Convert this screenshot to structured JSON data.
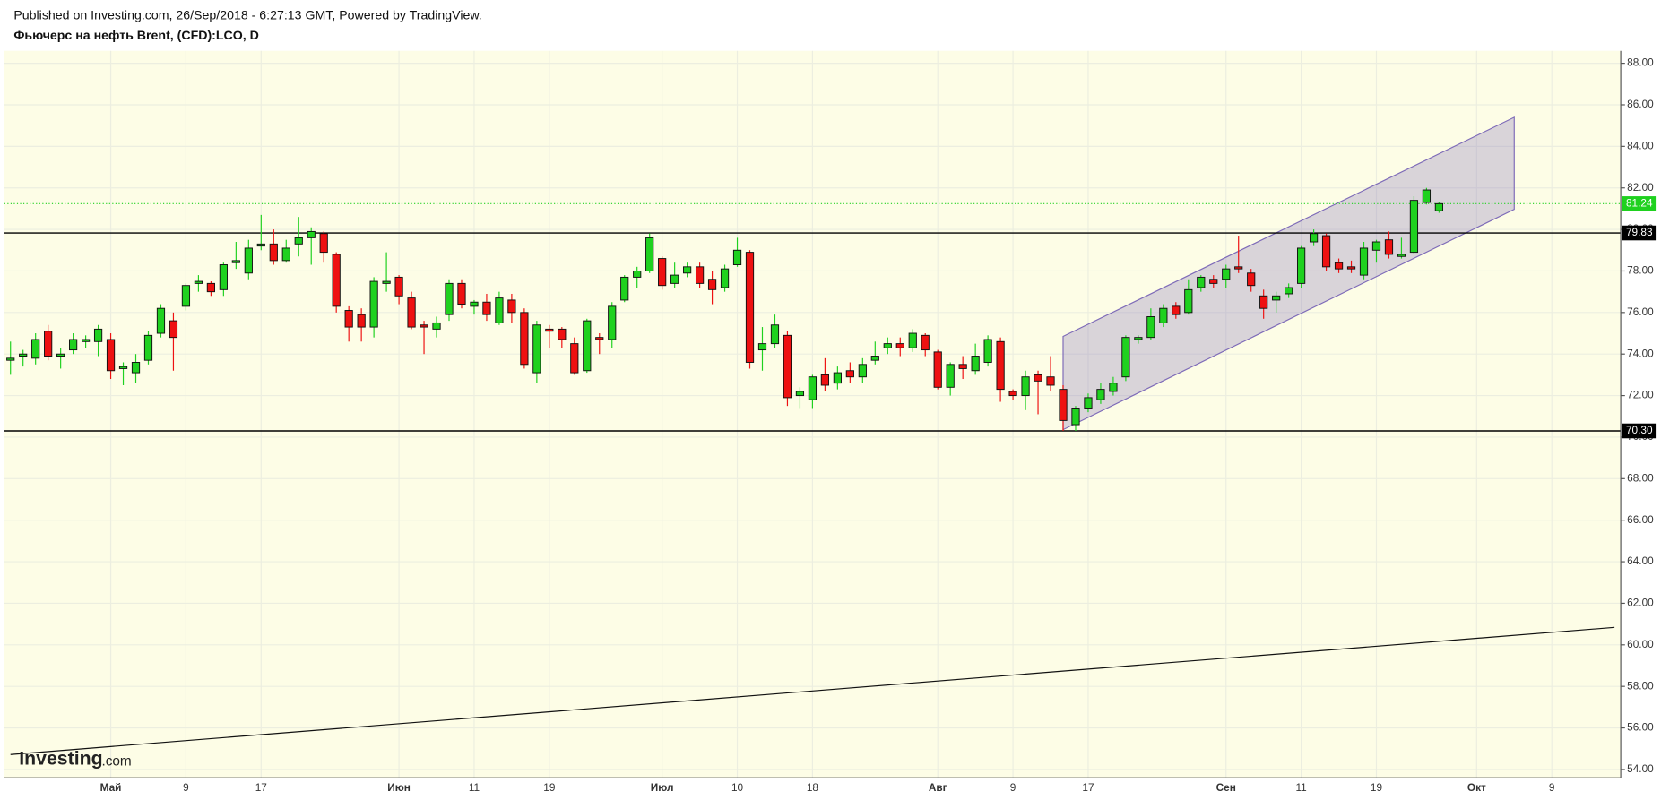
{
  "header": {
    "published": "Published on Investing.com, 26/Sep/2018 - 6:27:13 GMT, Powered by TradingView.",
    "instrument": "Фьючерс на нефть Brent, (CFD):LCO, D"
  },
  "watermark": {
    "brand": "Investing",
    "suffix": ".com"
  },
  "chart_data": {
    "type": "candlestick",
    "categories": [
      null,
      null,
      null,
      null,
      null,
      null,
      null,
      null,
      "Май",
      null,
      null,
      null,
      null,
      null,
      "9",
      null,
      null,
      null,
      null,
      null,
      "17",
      null,
      null,
      null,
      null,
      null,
      null,
      null,
      null,
      null,
      null,
      "Июн",
      null,
      null,
      null,
      null,
      null,
      "11",
      null,
      null,
      null,
      null,
      null,
      "19",
      null,
      null,
      null,
      null,
      null,
      null,
      null,
      null,
      "Июл",
      null,
      null,
      null,
      null,
      null,
      "10",
      null,
      null,
      null,
      null,
      null,
      "18",
      null,
      null,
      null,
      null,
      null,
      null,
      null,
      null,
      null,
      "Авг",
      null,
      null,
      null,
      null,
      null,
      "9",
      null,
      null,
      null,
      null,
      null,
      "17",
      null,
      null,
      null,
      null,
      null,
      null,
      null,
      null,
      null,
      null,
      "Сен",
      null,
      null,
      null,
      null,
      null,
      "11",
      null,
      null,
      null,
      null,
      null,
      "19",
      null,
      null,
      null,
      null,
      null,
      null,
      null,
      "Окт",
      null,
      null,
      null,
      null,
      null,
      "9",
      null,
      null,
      null,
      null,
      null
    ],
    "open": [
      73.7,
      73.9,
      73.8,
      75.1,
      73.9,
      74.2,
      74.6,
      74.6,
      74.7,
      73.3,
      73.1,
      73.7,
      75.0,
      75.6,
      76.3,
      77.4,
      77.4,
      77.1,
      78.4,
      77.9,
      79.2,
      79.3,
      78.5,
      79.3,
      79.6,
      79.8,
      78.8,
      76.1,
      75.9,
      75.3,
      77.4,
      77.7,
      76.7,
      75.4,
      75.2,
      75.9,
      77.4,
      76.3,
      76.5,
      75.5,
      76.6,
      76.0,
      73.1,
      75.2,
      75.2,
      74.5,
      73.2,
      74.8,
      74.7,
      76.6,
      77.7,
      78.0,
      78.6,
      77.4,
      77.9,
      78.2,
      77.6,
      77.2,
      78.3,
      78.9,
      74.2,
      74.5,
      74.9,
      72.0,
      71.8,
      73.0,
      72.6,
      73.2,
      72.9,
      73.7,
      74.3,
      74.5,
      74.3,
      74.9,
      74.1,
      72.4,
      73.5,
      73.2,
      73.6,
      74.6,
      72.2,
      72.0,
      73.0,
      72.9,
      72.3,
      70.6,
      71.4,
      71.8,
      72.2,
      72.9,
      74.7,
      74.8,
      75.5,
      76.3,
      76.0,
      77.2,
      77.6,
      77.6,
      78.2,
      77.9,
      76.8,
      76.6,
      76.9,
      77.4,
      79.4,
      79.7,
      78.4,
      78.2,
      77.8,
      79.0,
      79.5,
      78.7,
      78.9,
      81.3,
      80.9,
      null,
      null,
      null,
      null,
      null,
      null,
      null,
      null,
      null,
      null,
      null,
      null,
      null,
      null
    ],
    "high": [
      74.6,
      74.2,
      75.0,
      75.4,
      74.3,
      75.0,
      74.9,
      75.4,
      75.0,
      73.6,
      74.0,
      75.1,
      76.4,
      76.0,
      77.4,
      77.8,
      77.5,
      78.4,
      79.4,
      79.5,
      80.7,
      80.0,
      79.5,
      80.6,
      80.1,
      79.9,
      78.9,
      76.3,
      76.2,
      77.7,
      78.9,
      77.8,
      77.0,
      75.6,
      75.8,
      77.6,
      77.6,
      76.6,
      76.9,
      77.0,
      76.9,
      76.2,
      75.6,
      75.4,
      75.3,
      74.8,
      75.7,
      75.0,
      76.5,
      77.8,
      78.2,
      79.8,
      78.7,
      78.4,
      78.4,
      78.4,
      78.0,
      78.3,
      79.6,
      79.0,
      75.3,
      75.9,
      75.1,
      72.4,
      73.0,
      73.8,
      73.4,
      73.6,
      73.8,
      74.6,
      74.8,
      74.8,
      75.2,
      75.0,
      74.2,
      73.6,
      73.9,
      74.5,
      74.9,
      74.8,
      72.3,
      73.2,
      73.2,
      73.9,
      72.5,
      71.5,
      72.1,
      72.6,
      72.9,
      74.9,
      74.9,
      76.2,
      76.4,
      76.5,
      77.6,
      77.8,
      77.8,
      78.3,
      79.7,
      78.1,
      77.1,
      77.0,
      77.4,
      79.2,
      80.0,
      79.8,
      78.6,
      78.5,
      79.4,
      79.5,
      79.9,
      79.6,
      81.6,
      82.0,
      81.3,
      null,
      null,
      null,
      null,
      null,
      null,
      null,
      null,
      null,
      null,
      null,
      null,
      null,
      null
    ],
    "low": [
      73.0,
      73.4,
      73.5,
      73.7,
      73.3,
      74.0,
      74.3,
      73.9,
      72.8,
      72.5,
      72.6,
      73.5,
      74.8,
      73.2,
      76.1,
      77.0,
      76.8,
      76.8,
      78.1,
      77.6,
      79.0,
      78.3,
      78.4,
      78.7,
      78.3,
      78.4,
      76.0,
      74.6,
      74.6,
      74.8,
      77.0,
      76.4,
      75.2,
      74.0,
      74.8,
      75.6,
      76.2,
      75.9,
      75.6,
      75.4,
      75.5,
      73.3,
      72.6,
      74.3,
      74.3,
      73.0,
      73.1,
      74.0,
      74.3,
      76.5,
      77.2,
      77.9,
      77.1,
      77.2,
      77.7,
      77.2,
      76.4,
      77.0,
      78.2,
      73.3,
      73.2,
      74.3,
      71.5,
      71.4,
      71.4,
      72.2,
      72.3,
      72.6,
      72.6,
      73.5,
      74.0,
      73.9,
      74.1,
      73.9,
      72.3,
      72.0,
      72.8,
      73.0,
      73.4,
      71.7,
      71.8,
      71.3,
      71.1,
      72.2,
      70.3,
      70.3,
      71.2,
      71.6,
      72.0,
      72.7,
      74.5,
      74.7,
      75.3,
      75.7,
      75.9,
      77.0,
      77.2,
      77.2,
      77.9,
      77.0,
      75.7,
      76.0,
      76.7,
      77.2,
      79.2,
      78.0,
      77.9,
      77.9,
      77.6,
      78.4,
      78.6,
      78.6,
      78.8,
      81.2,
      80.8,
      null,
      null,
      null,
      null,
      null,
      null,
      null,
      null,
      null,
      null,
      null,
      null,
      null,
      null
    ],
    "close": [
      73.8,
      74.0,
      74.7,
      73.9,
      74.0,
      74.7,
      74.7,
      75.2,
      73.2,
      73.4,
      73.6,
      74.9,
      76.2,
      74.8,
      77.3,
      77.5,
      77.0,
      78.3,
      78.5,
      79.1,
      79.3,
      78.5,
      79.1,
      79.6,
      79.9,
      78.9,
      76.3,
      75.3,
      75.3,
      77.5,
      77.5,
      76.8,
      75.3,
      75.3,
      75.5,
      77.4,
      76.4,
      76.5,
      75.9,
      76.7,
      76.0,
      73.5,
      75.4,
      75.1,
      74.7,
      73.1,
      75.6,
      74.7,
      76.3,
      77.7,
      78.0,
      79.6,
      77.3,
      77.8,
      78.2,
      77.4,
      77.1,
      78.1,
      79.0,
      73.6,
      74.5,
      75.4,
      71.9,
      72.2,
      72.9,
      72.5,
      73.1,
      72.9,
      73.5,
      73.9,
      74.5,
      74.3,
      75.0,
      74.2,
      72.4,
      73.5,
      73.3,
      73.9,
      74.7,
      72.3,
      72.0,
      72.9,
      72.7,
      72.5,
      70.8,
      71.4,
      71.9,
      72.3,
      72.6,
      74.8,
      74.8,
      75.8,
      76.2,
      75.9,
      77.1,
      77.7,
      77.4,
      78.1,
      78.1,
      77.3,
      76.2,
      76.8,
      77.2,
      79.1,
      79.8,
      78.2,
      78.1,
      78.1,
      79.1,
      79.4,
      78.8,
      78.8,
      81.4,
      81.9,
      81.24,
      null,
      null,
      null,
      null,
      null,
      null,
      null,
      null,
      null,
      null,
      null,
      null,
      null,
      null
    ],
    "up_color": "#1fd11f",
    "down_color": "#ee1111",
    "ylim": [
      53.6,
      88.6
    ],
    "yticks": [
      {
        "value": 54,
        "label": "54.00"
      },
      {
        "value": 56,
        "label": "56.00"
      },
      {
        "value": 58,
        "label": "58.00"
      },
      {
        "value": 60,
        "label": "60.00"
      },
      {
        "value": 62,
        "label": "62.00"
      },
      {
        "value": 64,
        "label": "64.00"
      },
      {
        "value": 66,
        "label": "66.00"
      },
      {
        "value": 68,
        "label": "68.00"
      },
      {
        "value": 70,
        "label": "70.00"
      },
      {
        "value": 72,
        "label": "72.00"
      },
      {
        "value": 74,
        "label": "74.00"
      },
      {
        "value": 76,
        "label": "76.00"
      },
      {
        "value": 78,
        "label": "78.00"
      },
      {
        "value": 80,
        "label": "80.00"
      },
      {
        "value": 82,
        "label": "82.00"
      },
      {
        "value": 84,
        "label": "84.00"
      },
      {
        "value": 86,
        "label": "86.00"
      },
      {
        "value": 88,
        "label": "88.00"
      }
    ],
    "grid": true,
    "hlines": [
      {
        "value": 79.83,
        "label": "79.83"
      },
      {
        "value": 70.3,
        "label": "70.30"
      }
    ],
    "last_price": 81.24,
    "last_color": "#1fd11f",
    "channel": {
      "x": [
        84,
        120
      ],
      "upper": [
        74.85,
        85.4
      ],
      "lower": [
        70.36,
        80.97
      ],
      "color": "#7e6bb8"
    },
    "trendline": {
      "x": [
        0,
        128
      ],
      "y": [
        54.72,
        60.84
      ]
    }
  }
}
